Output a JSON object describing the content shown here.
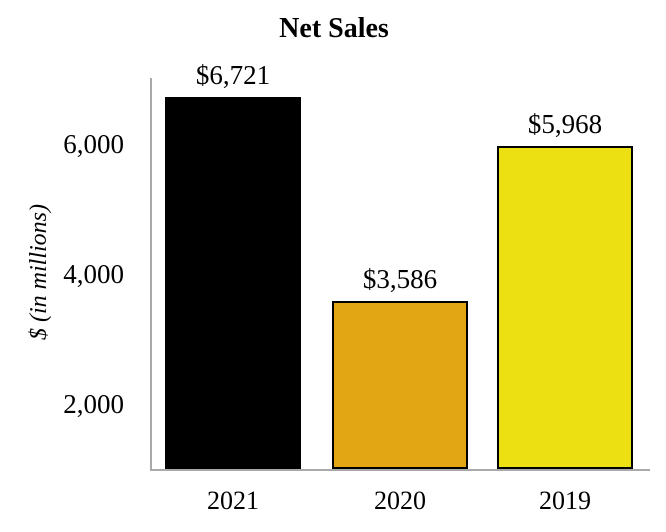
{
  "chart_data": {
    "type": "bar",
    "title": "Net Sales",
    "ylabel": "$ (in millions)",
    "xlabel": "",
    "categories": [
      "2021",
      "2020",
      "2019"
    ],
    "values": [
      6721,
      3586,
      5968
    ],
    "value_labels": [
      "$6,721",
      "$3,586",
      "$5,968"
    ],
    "bar_colors": [
      "#000000",
      "#E2A513",
      "#EDE012"
    ],
    "bar_border_color": "#000000",
    "axis_color": "#A9A9A9",
    "ylim": [
      1000,
      7000
    ],
    "y_ticks": [
      {
        "value": 2000,
        "label": "2,000"
      },
      {
        "value": 4000,
        "label": "4,000"
      },
      {
        "value": 6000,
        "label": "6,000"
      }
    ],
    "grid": false,
    "legend": "none"
  }
}
